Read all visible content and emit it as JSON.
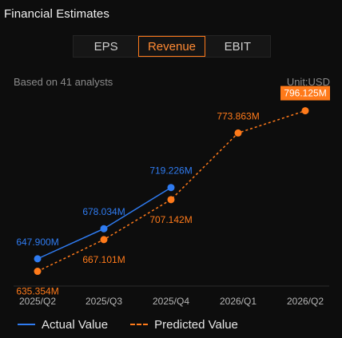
{
  "header": {
    "title": "Financial Estimates"
  },
  "tabs": [
    {
      "label": "EPS",
      "active": false
    },
    {
      "label": "Revenue",
      "active": true
    },
    {
      "label": "EBIT",
      "active": false
    }
  ],
  "info": {
    "analysts": "Based on 41 analysts",
    "unit": "Unit:USD"
  },
  "colors": {
    "actual": "#2f7bf0",
    "predicted": "#ff7a1a",
    "accent": "#ff7a1a"
  },
  "legend": {
    "actual": "Actual Value",
    "predicted": "Predicted Value"
  },
  "chart_data": {
    "type": "line",
    "categories": [
      "2025/Q2",
      "2025/Q3",
      "2025/Q4",
      "2026/Q1",
      "2026/Q2"
    ],
    "series": [
      {
        "name": "Actual Value",
        "values": [
          647.9,
          678.034,
          719.226,
          null,
          null
        ],
        "labels": [
          "647.900M",
          "678.034M",
          "719.226M",
          null,
          null
        ]
      },
      {
        "name": "Predicted Value",
        "values": [
          635.354,
          667.101,
          707.142,
          773.863,
          796.125
        ],
        "labels": [
          "635.354M",
          "667.101M",
          "707.142M",
          "773.863M",
          "796.125M"
        ]
      }
    ],
    "ylim": [
      615,
      815
    ]
  }
}
